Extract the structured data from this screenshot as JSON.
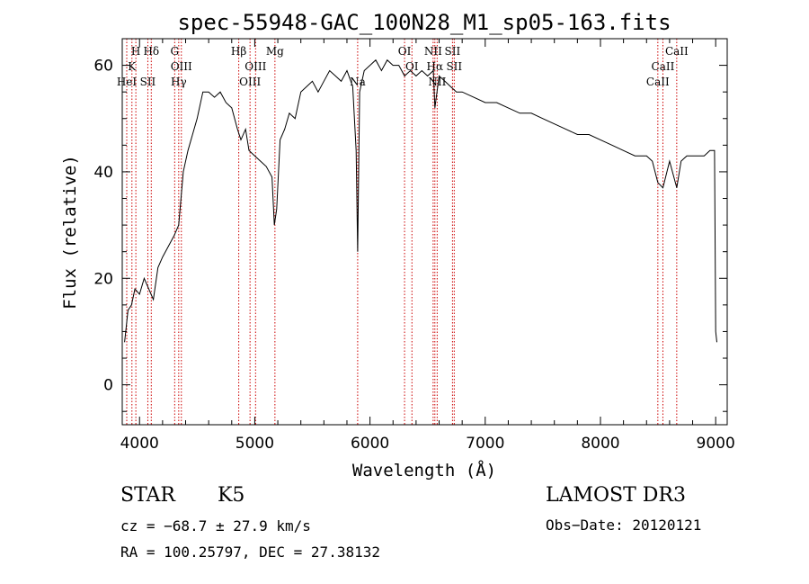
{
  "chart_data": {
    "type": "line",
    "title": "spec-55948-GAC_100N28_M1_sp05-163.fits",
    "xlabel": "Wavelength (Å)",
    "ylabel": "Flux (relative)",
    "xlim": [
      3850,
      9100
    ],
    "ylim": [
      -7.5,
      65
    ],
    "x_ticks": [
      4000,
      5000,
      6000,
      7000,
      8000,
      9000
    ],
    "y_ticks": [
      0,
      20,
      40,
      60
    ],
    "grid": false,
    "series": [
      {
        "name": "spectrum",
        "color": "#000000",
        "x": [
          3870,
          3900,
          3930,
          3960,
          4000,
          4040,
          4080,
          4120,
          4160,
          4200,
          4250,
          4300,
          4340,
          4380,
          4420,
          4460,
          4500,
          4550,
          4600,
          4650,
          4700,
          4750,
          4800,
          4850,
          4880,
          4920,
          4950,
          5000,
          5050,
          5100,
          5150,
          5170,
          5190,
          5220,
          5260,
          5300,
          5350,
          5400,
          5450,
          5500,
          5550,
          5600,
          5650,
          5700,
          5750,
          5800,
          5850,
          5880,
          5893,
          5910,
          5950,
          6000,
          6050,
          6100,
          6150,
          6200,
          6250,
          6300,
          6350,
          6400,
          6450,
          6500,
          6550,
          6563,
          6600,
          6650,
          6700,
          6750,
          6800,
          6900,
          7000,
          7100,
          7200,
          7300,
          7400,
          7500,
          7600,
          7700,
          7800,
          7900,
          8000,
          8100,
          8200,
          8300,
          8400,
          8450,
          8498,
          8542,
          8600,
          8662,
          8700,
          8750,
          8800,
          8850,
          8900,
          8950,
          8990,
          9000,
          9010
        ],
        "y": [
          8,
          14,
          15,
          18,
          17,
          20,
          18,
          16,
          22,
          24,
          26,
          28,
          30,
          40,
          44,
          47,
          50,
          55,
          55,
          54,
          55,
          53,
          52,
          48,
          46,
          48,
          44,
          43,
          42,
          41,
          39,
          30,
          33,
          46,
          48,
          51,
          50,
          55,
          56,
          57,
          55,
          57,
          59,
          58,
          57,
          59,
          56,
          44,
          25,
          55,
          59,
          60,
          61,
          59,
          61,
          60,
          60,
          58,
          59,
          58,
          59,
          58,
          59,
          52,
          58,
          57,
          56,
          55,
          55,
          54,
          53,
          53,
          52,
          51,
          51,
          50,
          49,
          48,
          47,
          47,
          46,
          45,
          44,
          43,
          43,
          42,
          38,
          37,
          42,
          37,
          42,
          43,
          43,
          43,
          43,
          44,
          44,
          10,
          8
        ]
      }
    ],
    "annotations": [
      {
        "label": "H",
        "wavelength": 3968,
        "row": 1
      },
      {
        "label": "K",
        "wavelength": 3934,
        "row": 2
      },
      {
        "label": "HeI",
        "wavelength": 3889,
        "row": 3
      },
      {
        "label": "SII",
        "wavelength": 4072,
        "row": 3
      },
      {
        "label": "Hδ",
        "wavelength": 4102,
        "row": 1
      },
      {
        "label": "G",
        "wavelength": 4305,
        "row": 1
      },
      {
        "label": "OIII",
        "wavelength": 4363,
        "row": 2
      },
      {
        "label": "Hγ",
        "wavelength": 4340,
        "row": 3
      },
      {
        "label": "Hβ",
        "wavelength": 4861,
        "row": 1
      },
      {
        "label": "OIII",
        "wavelength": 5007,
        "row": 2
      },
      {
        "label": "OIII",
        "wavelength": 4959,
        "row": 3
      },
      {
        "label": "Mg",
        "wavelength": 5175,
        "row": 1
      },
      {
        "label": "Na",
        "wavelength": 5893,
        "row": 3
      },
      {
        "label": "OI",
        "wavelength": 6300,
        "row": 1
      },
      {
        "label": "OI",
        "wavelength": 6364,
        "row": 2
      },
      {
        "label": "NII",
        "wavelength": 6548,
        "row": 1
      },
      {
        "label": "Hα",
        "wavelength": 6563,
        "row": 2
      },
      {
        "label": "NII",
        "wavelength": 6583,
        "row": 3
      },
      {
        "label": "SII",
        "wavelength": 6716,
        "row": 1
      },
      {
        "label": "SII",
        "wavelength": 6731,
        "row": 2
      },
      {
        "label": "CaII",
        "wavelength": 8662,
        "row": 1
      },
      {
        "label": "CaII",
        "wavelength": 8542,
        "row": 2
      },
      {
        "label": "CaII",
        "wavelength": 8498,
        "row": 3
      }
    ],
    "annotation_color": "#cc0000"
  },
  "info": {
    "class": "STAR",
    "subclass": "K5",
    "cz": "cz = −68.7 ± 27.9 km/s",
    "coords": "RA = 100.25797, DEC =  27.38132",
    "survey": "LAMOST DR3",
    "obs_date": "Obs−Date: 20120121"
  }
}
